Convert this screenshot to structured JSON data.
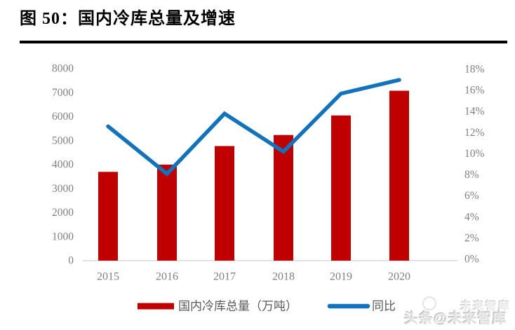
{
  "header": {
    "figure_label": "图 50：国内冷库总量及增速"
  },
  "chart_data": {
    "type": "bar",
    "title": "国内冷库总量及增速",
    "categories": [
      "2015",
      "2016",
      "2017",
      "2018",
      "2019",
      "2020"
    ],
    "series": [
      {
        "name": "国内冷库总量（万吨）",
        "type": "bar",
        "axis": "left",
        "color": "#C00000",
        "values": [
          3700,
          4000,
          4775,
          5235,
          6050,
          7080
        ]
      },
      {
        "name": "同比",
        "type": "line",
        "axis": "right",
        "unit": "%",
        "color": "#1173BD",
        "values": [
          12.6,
          8.1,
          13.8,
          10.2,
          15.7,
          17.0
        ]
      }
    ],
    "left_axis": {
      "min": 0,
      "max": 8000,
      "step": 1000,
      "tick_labels": [
        "8000",
        "7000",
        "6000",
        "5000",
        "4000",
        "3000",
        "2000",
        "1000",
        "0"
      ]
    },
    "right_axis": {
      "min": 0,
      "max": 18,
      "step": 2,
      "unit": "%",
      "tick_labels": [
        "18%",
        "16%",
        "14%",
        "12%",
        "10%",
        "8%",
        "6%",
        "4%",
        "2%",
        "0%"
      ]
    },
    "legend": {
      "position": "bottom",
      "items": [
        {
          "label": "国内冷库总量（万吨）",
          "swatch": "bar",
          "color": "#C00000"
        },
        {
          "label": "同比",
          "swatch": "line",
          "color": "#1173BD"
        }
      ]
    },
    "grid": false,
    "colors": {
      "axis_line": "#D9D9D9",
      "tick_text": "#7F7F7F",
      "legend_text": "#595959",
      "background": "#FFFFFF"
    }
  },
  "watermark": {
    "text": "头条@未来智库",
    "ghost_text": "未来智库"
  }
}
